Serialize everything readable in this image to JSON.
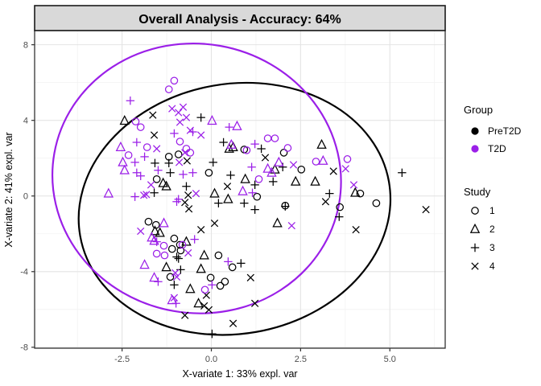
{
  "title": "Overall Analysis - Accuracy: 64%",
  "axes": {
    "x": {
      "label": "X-variate 1: 33% expl. var",
      "tick_values": [
        -2.5,
        0.0,
        2.5,
        5.0
      ],
      "tick_labels": [
        "-2.5",
        "0.0",
        "2.5",
        "5.0"
      ],
      "minor_ticks": [
        -3.75,
        -1.25,
        1.25,
        3.75,
        6.25
      ],
      "domain": [
        -4.95,
        6.55
      ]
    },
    "y": {
      "label": "X-variate 2: 41% expl. var",
      "tick_values": [
        8,
        4,
        0,
        -4,
        -8
      ],
      "tick_labels": [
        "8",
        "4",
        "0",
        "-4",
        "-8"
      ],
      "minor_ticks": [
        6,
        2,
        -2,
        -6
      ],
      "domain": [
        -8.05,
        8.75
      ]
    }
  },
  "legend": {
    "group": {
      "title": "Group",
      "items": [
        {
          "label": "PreT2D",
          "color": "#000000"
        },
        {
          "label": "T2D",
          "color": "#9b1fe8"
        }
      ]
    },
    "study": {
      "title": "Study",
      "items": [
        {
          "label": "1",
          "shape": "circle"
        },
        {
          "label": "2",
          "shape": "triangle"
        },
        {
          "label": "3",
          "shape": "plus"
        },
        {
          "label": "4",
          "shape": "x"
        }
      ]
    }
  },
  "colors": {
    "pret2d": "#000000",
    "t2d": "#9b1fe8",
    "strip_bg": "#d9d9d9",
    "strip_border": "#1a1a1a",
    "panel_bg": "#ffffff",
    "panel_border": "#333333",
    "grid_major": "#e4e4e4",
    "grid_minor": "#f2f2f2",
    "tick_label": "#4d4d4d"
  },
  "chart_data": {
    "type": "scatter",
    "title": "Overall Analysis - Accuracy: 64%",
    "xlabel": "X-variate 1: 33% expl. var",
    "ylabel": "X-variate 2: 41% expl. var",
    "xlim": [
      -4.95,
      6.55
    ],
    "ylim": [
      -8.05,
      8.75
    ],
    "legend_position": "right",
    "grid": true,
    "series": [
      {
        "group": "PreT2D",
        "study": "1",
        "shape": "circle",
        "color": "#000000",
        "points": [
          [
            -1.19,
            2.08
          ],
          [
            -0.92,
            2.2
          ],
          [
            -0.07,
            1.23
          ],
          [
            0.92,
            2.46
          ],
          [
            2.03,
            2.29
          ],
          [
            2.52,
            1.4
          ],
          [
            1.28,
            -0.04
          ],
          [
            2.07,
            -0.51
          ],
          [
            3.6,
            -0.59
          ],
          [
            4.17,
            0.13
          ],
          [
            4.62,
            -0.38
          ],
          [
            -1.76,
            -1.36
          ],
          [
            -1.55,
            -1.53
          ],
          [
            -1.53,
            0.89
          ],
          [
            -1.1,
            -2.8
          ],
          [
            -1.04,
            -2.25
          ],
          [
            -0.88,
            -2.58
          ],
          [
            -0.86,
            -2.88
          ],
          [
            0.2,
            -3.14
          ],
          [
            0.59,
            -3.77
          ],
          [
            -1.15,
            -4.28
          ],
          [
            -0.02,
            -4.32
          ],
          [
            0.25,
            -4.75
          ],
          [
            0.38,
            -4.53
          ]
        ]
      },
      {
        "group": "PreT2D",
        "study": "2",
        "shape": "triangle",
        "color": "#000000",
        "points": [
          [
            -2.43,
            3.98
          ],
          [
            -1.35,
            0.68
          ],
          [
            -1.26,
            0.51
          ],
          [
            0.09,
            0.13
          ],
          [
            0.47,
            -0.17
          ],
          [
            -1.44,
            -1.95
          ],
          [
            -0.7,
            -2.42
          ],
          [
            -0.2,
            -3.14
          ],
          [
            -1.26,
            -3.77
          ],
          [
            -0.29,
            -3.86
          ],
          [
            -0.59,
            -4.92
          ],
          [
            -0.36,
            -5.68
          ],
          [
            1.78,
            1.4
          ],
          [
            3.09,
            2.71
          ],
          [
            2.36,
            0.76
          ],
          [
            2.91,
            0.76
          ],
          [
            4.03,
            0.17
          ],
          [
            1.85,
            -1.44
          ],
          [
            0.61,
            2.58
          ],
          [
            0.5,
            2.5
          ],
          [
            0.95,
            0.89
          ],
          [
            -1.58,
            -1.86
          ]
        ]
      },
      {
        "group": "PreT2D",
        "study": "3",
        "shape": "plus",
        "color": "#000000",
        "points": [
          [
            -0.29,
            4.15
          ],
          [
            -1.58,
            1.74
          ],
          [
            -1.19,
            1.74
          ],
          [
            -1.15,
            1.23
          ],
          [
            -1.6,
            0.17
          ],
          [
            -0.7,
            0.51
          ],
          [
            0.05,
            1.78
          ],
          [
            0.54,
            1.1
          ],
          [
            1.22,
            0.59
          ],
          [
            0.2,
            -0.38
          ],
          [
            0.92,
            -0.38
          ],
          [
            1.22,
            -0.72
          ],
          [
            -0.97,
            -3.22
          ],
          [
            -1.04,
            -4.7
          ],
          [
            -0.86,
            -3.9
          ],
          [
            0.83,
            -3.56
          ],
          [
            -0.92,
            -3.31
          ],
          [
            0.02,
            -7.29
          ],
          [
            2.0,
            1.53
          ],
          [
            1.73,
            0.76
          ],
          [
            5.34,
            1.23
          ],
          [
            3.31,
            0.13
          ],
          [
            3.58,
            -1.1
          ],
          [
            2.07,
            -0.55
          ],
          [
            1.4,
            2.5
          ],
          [
            0.34,
            2.84
          ]
        ]
      },
      {
        "group": "PreT2D",
        "study": "4",
        "shape": "x",
        "color": "#000000",
        "points": [
          [
            -1.6,
            3.22
          ],
          [
            -1.64,
            4.28
          ],
          [
            -0.68,
            1.86
          ],
          [
            0.45,
            0.51
          ],
          [
            -0.74,
            -0.34
          ],
          [
            -0.63,
            -0.68
          ],
          [
            -0.29,
            -1.78
          ],
          [
            0.09,
            -1.44
          ],
          [
            1.1,
            -4.32
          ],
          [
            -0.14,
            -5.25
          ],
          [
            -0.2,
            -5.81
          ],
          [
            -0.07,
            -6.02
          ],
          [
            -0.74,
            -6.31
          ],
          [
            1.22,
            -5.68
          ],
          [
            0.61,
            -6.74
          ],
          [
            -0.65,
            0.04
          ],
          [
            3.42,
            1.31
          ],
          [
            3.2,
            -0.3
          ],
          [
            4.05,
            -1.78
          ],
          [
            6.01,
            -0.72
          ],
          [
            1.51,
            2.03
          ]
        ]
      },
      {
        "group": "T2D",
        "study": "1",
        "shape": "circle",
        "color": "#9b1fe8",
        "points": [
          [
            -1.04,
            6.1
          ],
          [
            -1.19,
            5.64
          ],
          [
            -2.12,
            3.94
          ],
          [
            -1.98,
            3.64
          ],
          [
            -2.32,
            2.16
          ],
          [
            -1.8,
            2.58
          ],
          [
            -0.88,
            2.88
          ],
          [
            -0.7,
            2.5
          ],
          [
            -0.59,
            2.29
          ],
          [
            0.99,
            2.42
          ],
          [
            1.58,
            3.05
          ],
          [
            1.78,
            3.05
          ],
          [
            2.14,
            2.54
          ],
          [
            2.93,
            1.82
          ],
          [
            3.81,
            1.95
          ],
          [
            1.33,
            0.89
          ],
          [
            -1.33,
            -2.63
          ],
          [
            -1.53,
            -3.05
          ],
          [
            -1.31,
            -3.14
          ],
          [
            -0.18,
            -4.96
          ],
          [
            -0.81,
            -2.58
          ]
        ]
      },
      {
        "group": "T2D",
        "study": "2",
        "shape": "triangle",
        "color": "#9b1fe8",
        "points": [
          [
            0.02,
            3.98
          ],
          [
            0.72,
            3.69
          ],
          [
            -2.54,
            2.58
          ],
          [
            -2.48,
            1.78
          ],
          [
            -2.43,
            1.36
          ],
          [
            -2.88,
            0.13
          ],
          [
            -1.33,
            -1.44
          ],
          [
            -1.67,
            -2.2
          ],
          [
            -1.6,
            -2.37
          ],
          [
            -1.87,
            -3.64
          ],
          [
            -1.6,
            -4.32
          ],
          [
            0.88,
            0.25
          ],
          [
            1.89,
            1.78
          ],
          [
            1.58,
            1.44
          ],
          [
            1.69,
            1.23
          ],
          [
            3.13,
            1.86
          ],
          [
            0.56,
            2.71
          ],
          [
            -1.1,
            -5.51
          ]
        ]
      },
      {
        "group": "T2D",
        "study": "3",
        "shape": "plus",
        "color": "#9b1fe8",
        "points": [
          [
            -2.27,
            5.04
          ],
          [
            0.5,
            3.64
          ],
          [
            -2.14,
            1.78
          ],
          [
            -2.09,
            2.84
          ],
          [
            -1.87,
            2.08
          ],
          [
            -2.09,
            1.23
          ],
          [
            -1.98,
            1.06
          ],
          [
            -1.49,
            1.36
          ],
          [
            -0.79,
            1.14
          ],
          [
            -0.52,
            1.23
          ],
          [
            -2.14,
            -0.04
          ],
          [
            -0.92,
            -0.17
          ],
          [
            -1.53,
            -2.42
          ],
          [
            -0.47,
            -2.29
          ],
          [
            0.47,
            -3.47
          ],
          [
            -1.49,
            -4.53
          ],
          [
            0.02,
            -4.7
          ],
          [
            -0.99,
            -5.68
          ],
          [
            -0.97,
            -0.3
          ],
          [
            1.15,
            0.17
          ],
          [
            1.22,
            2.75
          ],
          [
            -1.04,
            3.31
          ],
          [
            -0.52,
            3.39
          ],
          [
            1.13,
            1.53
          ]
        ]
      },
      {
        "group": "T2D",
        "study": "4",
        "shape": "x",
        "color": "#9b1fe8",
        "points": [
          [
            -1.1,
            4.62
          ],
          [
            -0.92,
            4.41
          ],
          [
            -0.79,
            4.7
          ],
          [
            -0.7,
            4.15
          ],
          [
            -0.59,
            3.47
          ],
          [
            -0.88,
            3.9
          ],
          [
            -1.53,
            2.5
          ],
          [
            -0.9,
            1.78
          ],
          [
            -0.74,
            2.29
          ],
          [
            -1.69,
            0.59
          ],
          [
            -1.82,
            0.08
          ],
          [
            -1.98,
            -1.86
          ],
          [
            -0.65,
            -3.01
          ],
          [
            -0.97,
            -4.28
          ],
          [
            -1.04,
            -5.38
          ],
          [
            -1.89,
            0.04
          ],
          [
            -0.43,
            0.13
          ],
          [
            3.76,
            1.44
          ],
          [
            3.99,
            0.59
          ],
          [
            2.25,
            -1.57
          ],
          [
            -0.29,
            3.22
          ],
          [
            -1.01,
            -4.07
          ],
          [
            2.3,
            1.65
          ]
        ]
      }
    ],
    "ellipses": [
      {
        "group": "PreT2D",
        "color": "#000000",
        "cx": 0.65,
        "cy": -0.68,
        "rx": 4.39,
        "ry": 6.61,
        "rot_deg": -10
      },
      {
        "group": "T2D",
        "color": "#9b1fe8",
        "cx": -0.41,
        "cy": 0.93,
        "rx": 4.05,
        "ry": 7.12,
        "rot_deg": 10
      }
    ]
  }
}
